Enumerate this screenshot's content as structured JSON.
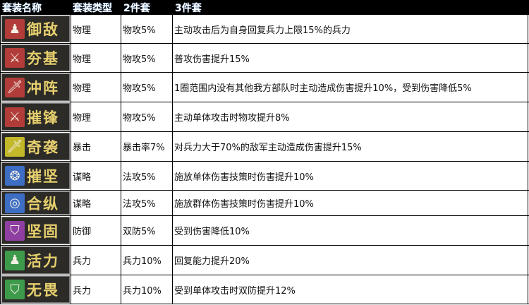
{
  "header": [
    "套装名称",
    "套装类型",
    "2件套",
    "3件套"
  ],
  "rows": [
    {
      "name": "御敌",
      "icon": "soldier-icon",
      "icon_color": "#b13c39",
      "type": "物理",
      "two": "物攻5%",
      "three": "主动攻击后为自身回复兵力上限15%的兵力"
    },
    {
      "name": "夯基",
      "icon": "sword-icon",
      "icon_color": "#b13c39",
      "type": "物理",
      "two": "物攻5%",
      "three": "普攻伤害提升15%"
    },
    {
      "name": "冲阵",
      "icon": "dagger-icon",
      "icon_color": "#b13c39",
      "type": "物理",
      "two": "物攻5%",
      "three": "1圈范围内没有其他我方部队时主动造成伤害提升10%，受到伤害降低5%"
    },
    {
      "name": "摧锋",
      "icon": "sword-icon",
      "icon_color": "#b13c39",
      "type": "物理",
      "two": "物攻5%",
      "three": "主动单体攻击时物攻提升8%"
    },
    {
      "name": "奇袭",
      "icon": "dagger-icon",
      "icon_color": "#c2b82a",
      "type": "暴击",
      "two": "暴击率7%",
      "three": "对兵力大于70%的敌军主动造成伤害提升15%"
    },
    {
      "name": "摧坚",
      "icon": "whirl-icon",
      "icon_color": "#3d6ec4",
      "type": "谋略",
      "two": "法攻5%",
      "three": "施放单体伤害技策时伤害提升10%"
    },
    {
      "name": "合纵",
      "icon": "eye-icon",
      "icon_color": "#3d6ec4",
      "type": "谋略",
      "two": "法攻5%",
      "three": "施放群体伤害技策时伤害提升10%"
    },
    {
      "name": "坚固",
      "icon": "shield-icon",
      "icon_color": "#8f3fa2",
      "type": "防御",
      "two": "双防5%",
      "three": "受到伤害降低10%"
    },
    {
      "name": "活力",
      "icon": "soldier-icon",
      "icon_color": "#3e9a4b",
      "type": "兵力",
      "two": "兵力10%",
      "three": "回复能力提升20%"
    },
    {
      "name": "无畏",
      "icon": "shield-icon",
      "icon_color": "#3e9a4b",
      "type": "兵力",
      "two": "兵力10%",
      "three": "受到单体攻击时双防提升12%"
    }
  ]
}
